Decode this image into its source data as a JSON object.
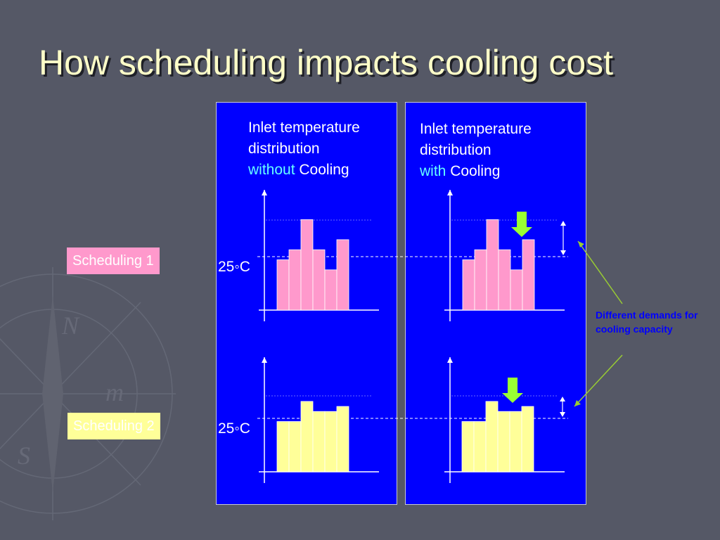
{
  "slide": {
    "title": "How scheduling impacts cooling cost",
    "background": "#555866"
  },
  "panels": {
    "left": {
      "caption_line1": "Inlet temperature",
      "caption_line2": "distribution",
      "caption_highlight": "without",
      "caption_tail": "Cooling"
    },
    "right": {
      "caption_line1": "Inlet temperature",
      "caption_line2": "distribution",
      "caption_highlight": "with",
      "caption_tail": "Cooling"
    }
  },
  "temperature_label": "25◦C",
  "schedules": [
    {
      "label": "Scheduling 1",
      "bar_color": "#ff99cc",
      "values": [
        5,
        6,
        9,
        6,
        4,
        7
      ]
    },
    {
      "label": "Scheduling 2",
      "bar_color": "#ffff99",
      "values": [
        5,
        5,
        7,
        6,
        6,
        6.5
      ]
    }
  ],
  "note": "Different demands for cooling capacity",
  "colors": {
    "panel": "#0000ff",
    "highlight_text": "#66ffff",
    "arrow_green": "#99ff33",
    "pointer_line": "#99cc33"
  },
  "icons": [
    "down-arrow-icon",
    "double-headed-arrow-icon"
  ]
}
